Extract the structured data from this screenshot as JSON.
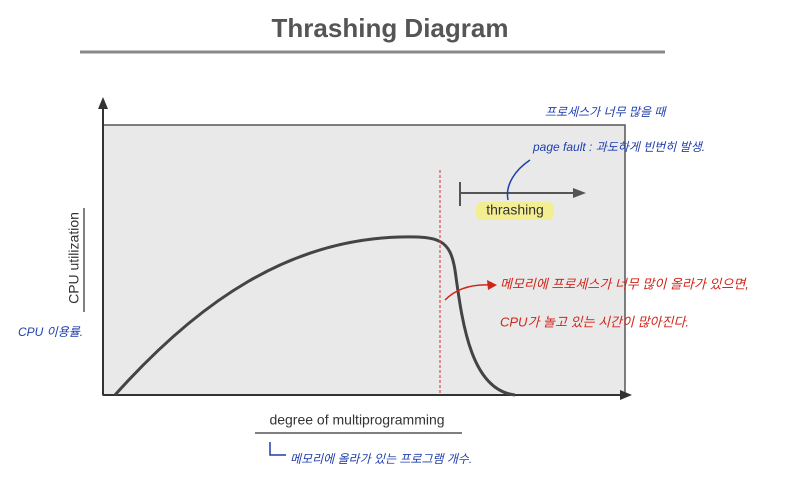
{
  "header": {
    "title": "Thrashing Diagram"
  },
  "axes": {
    "y_label": "CPU utilization",
    "x_label": "degree of multiprogramming"
  },
  "regions": {
    "thrashing": "thrashing"
  },
  "annotations": {
    "top_note": "프로세스가 너무 많을 때",
    "page_fault": "page fault : 과도하게 빈번히 발생.",
    "red_note_1": "메모리에 프로세스가 너무 많이 올라가 있으면,",
    "red_note_2": "CPU가 놀고 있는 시간이 많아진다.",
    "y_note": "CPU 이용률.",
    "x_note": "메모리에 올라가 있는 프로그램 개수."
  }
}
